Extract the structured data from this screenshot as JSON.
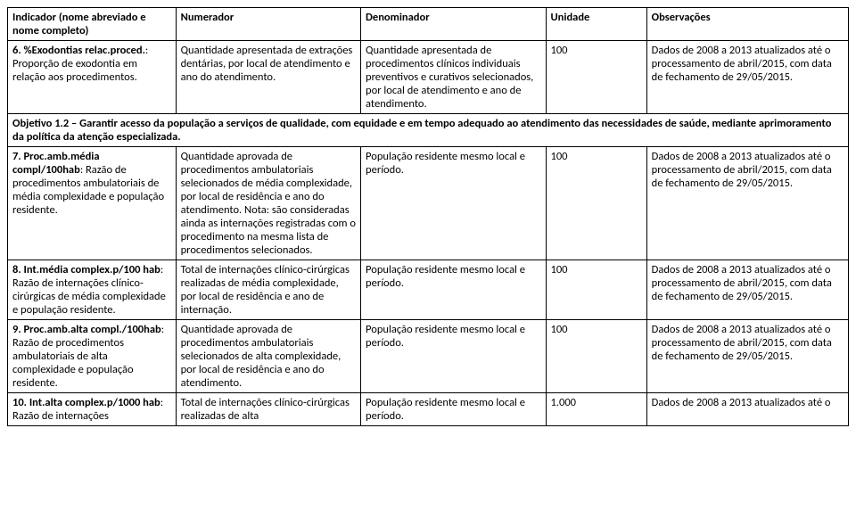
{
  "headers": {
    "indicador": "Indicador (nome abreviado e nome completo)",
    "numerador": "Numerador",
    "denominador": "Denominador",
    "unidade": "Unidade",
    "observacoes": "Observações"
  },
  "rows": [
    {
      "ind_bold": "6. %Exodontias relac.proced.",
      "ind_rest": ": Proporção de exodontia em relação aos procedimentos.",
      "num": "Quantidade apresentada de extrações dentárias, por local de atendimento e ano do atendimento.",
      "den": "Quantidade apresentada de procedimentos clínicos individuais preventivos e curativos selecionados, por local de atendimento e ano de atendimento.",
      "uni": "100",
      "obs": "Dados de 2008 a 2013 atualizados até o processamento de abril/2015, com data de fechamento de 29/05/2015."
    }
  ],
  "section": "Objetivo 1.2 – Garantir acesso da população a serviços de qualidade, com equidade e em tempo adequado ao atendimento das necessidades de saúde, mediante aprimoramento da política da atenção especializada.",
  "rows2": [
    {
      "ind_bold": "7. Proc.amb.média compl/100hab",
      "ind_rest": ": Razão de procedimentos ambulatoriais de média complexidade e população residente.",
      "num": "Quantidade aprovada de procedimentos ambulatoriais selecionados de média complexidade, por local de residência e ano do atendimento. Nota: são consideradas ainda as internações registradas com o procedimento na mesma lista de procedimentos selecionados.",
      "den": "População residente mesmo local e período.",
      "uni": "100",
      "obs": "Dados de 2008 a 2013 atualizados até o processamento de abril/2015, com data de fechamento de 29/05/2015."
    },
    {
      "ind_bold": "8. Int.média complex.p/100 hab",
      "ind_rest": ": Razão de internações clínico-cirúrgicas de média complexidade e população residente.",
      "num": "Total de internações clínico-cirúrgicas realizadas de média complexidade, por local de residência e ano de internação.",
      "den": "População residente mesmo local e período.",
      "uni": "100",
      "obs": "Dados de 2008 a 2013 atualizados até o processamento de abril/2015, com data de fechamento de 29/05/2015."
    },
    {
      "ind_bold": "9. Proc.amb.alta compl./100hab",
      "ind_rest": ": Razão de procedimentos ambulatoriais de alta complexidade e população residente.",
      "num": "Quantidade aprovada de procedimentos ambulatoriais selecionados de alta complexidade, por local de residência e ano do atendimento.",
      "den": "População residente mesmo local e período.",
      "uni": "100",
      "obs": "Dados de 2008 a 2013 atualizados até o processamento de abril/2015, com data de fechamento de 29/05/2015."
    },
    {
      "ind_bold": "10. Int.alta complex.p/1000 hab",
      "ind_rest": ": Razão de internações",
      "num": "Total de internações clínico-cirúrgicas realizadas de alta",
      "den": "População residente mesmo local e período.",
      "uni": "1.000",
      "obs": "Dados de 2008 a 2013 atualizados até o"
    }
  ]
}
